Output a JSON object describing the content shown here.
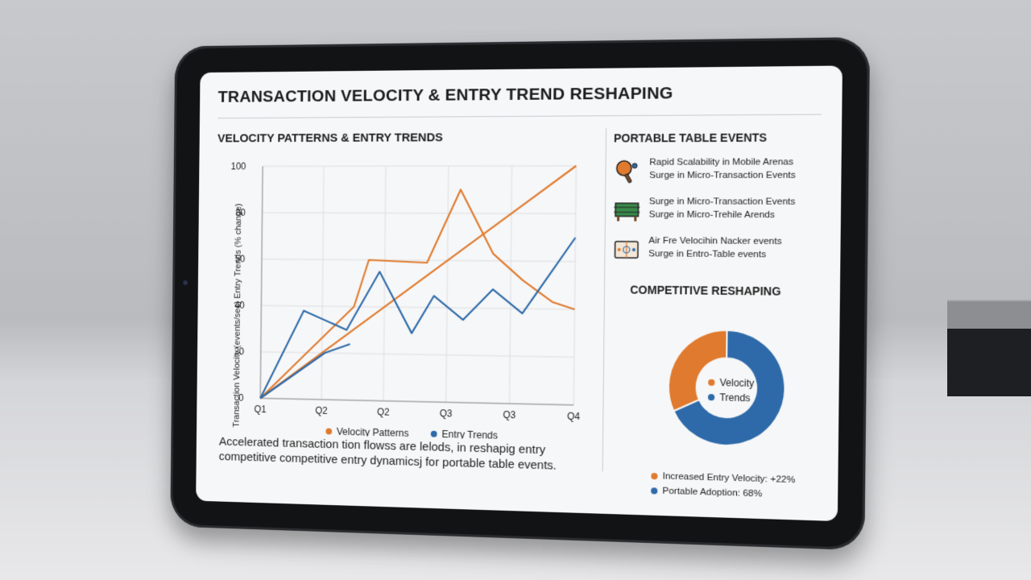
{
  "page": {
    "title": "TRANSACTION VELOCITY & ENTRY TREND RESHAPING"
  },
  "left_panel": {
    "title": "VELOCITY PATTERNS & ENTRY TRENDS",
    "summary": "Accelerated transaction tion flowss are lelods, in reshapig entry competitive competitive entry dynamicsj for portable table events."
  },
  "chart_data": {
    "type": "line",
    "ylabel": "Transaction Velocity (events/sec) Entry Trends (% change)",
    "ylim": [
      0,
      100
    ],
    "yticks": [
      0,
      20,
      40,
      50,
      80,
      100
    ],
    "xticks": [
      "Q1",
      "Q2",
      "Q2",
      "Q3",
      "Q3",
      "Q4"
    ],
    "grid": true,
    "legend": "bottom",
    "series": [
      {
        "name": "Velocity Patterns",
        "color": "#e07a2e",
        "points": [
          [
            0,
            0
          ],
          [
            1.3,
            40
          ],
          [
            1.5,
            60
          ],
          [
            2.3,
            59
          ],
          [
            2.75,
            90
          ],
          [
            3.2,
            63
          ],
          [
            3.6,
            52
          ],
          [
            4,
            43
          ],
          [
            4.3,
            40
          ]
        ]
      },
      {
        "name": "Velocity Patterns (trend)",
        "color": "#e07a2e",
        "points": [
          [
            0,
            0
          ],
          [
            4.3,
            100
          ]
        ]
      },
      {
        "name": "Entry Trends",
        "color": "#2e6aa9",
        "points": [
          [
            0,
            0
          ],
          [
            0.6,
            38
          ],
          [
            1.2,
            30
          ],
          [
            1.65,
            55
          ],
          [
            2.1,
            29
          ],
          [
            2.4,
            45
          ],
          [
            2.8,
            35
          ],
          [
            3.2,
            48
          ],
          [
            3.6,
            38
          ],
          [
            4.3,
            70
          ]
        ]
      },
      {
        "name": "Entry Trends (lower)",
        "color": "#2e6aa9",
        "points": [
          [
            0,
            0
          ],
          [
            0.9,
            20
          ],
          [
            1.25,
            24
          ]
        ]
      }
    ],
    "legend_entries": [
      "Velocity Patterns",
      "Entry Trends"
    ]
  },
  "right_panel": {
    "title": "PORTABLE TABLE EVENTS",
    "events": [
      {
        "icon": "ping-pong-paddle-icon",
        "line1": "Rapid Scalability in Mobile Arenas",
        "line2": "Surge in Micro-Transaction Events"
      },
      {
        "icon": "foosball-table-icon",
        "line1": "Surge in Micro-Transaction Events",
        "line2": "Surge in Micro-Trehile Arends"
      },
      {
        "icon": "air-hockey-table-icon",
        "line1": "Air Fre Velocihin Nacker events",
        "line2": "Surge in Entro-Table events"
      }
    ],
    "reshaping_title": "COMPETITIVE RESHAPING",
    "donut": {
      "segments": [
        {
          "label": "Velocity",
          "value": 32,
          "color": "#e07a2e"
        },
        {
          "label": "Trends",
          "value": 68,
          "color": "#2e6aa9"
        }
      ]
    },
    "stats": [
      {
        "label": "Increased Entry Velocity: +22%",
        "color": "#e07a2e"
      },
      {
        "label": "Portable Adoption: 68%",
        "color": "#2e6aa9"
      }
    ]
  }
}
